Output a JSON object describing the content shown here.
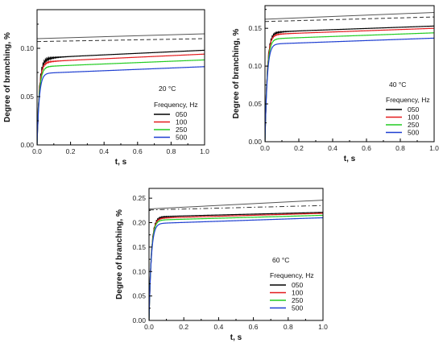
{
  "chart_data": [
    {
      "type": "line",
      "annotation": "20 °C",
      "xlabel": "t, s",
      "ylabel": "Degree of branching, %",
      "xlim": [
        0.0,
        1.0
      ],
      "ylim": [
        0.0,
        0.14
      ],
      "xticks": [
        "0.0",
        "0.2",
        "0.4",
        "0.6",
        "0.8",
        "1.0"
      ],
      "yticks": [
        "0.00",
        "0.05",
        "0.10"
      ],
      "yticks_values": [
        0.0,
        0.05,
        0.1
      ],
      "legend_title": "Frequency, Hz",
      "legend_position": "bottom-right",
      "grid": false,
      "reference_lines": [
        {
          "style": "solid",
          "color": "#555555",
          "x": [
            0,
            1
          ],
          "y": [
            0.11,
            0.115
          ]
        },
        {
          "style": "dashed",
          "color": "#333333",
          "x": [
            0,
            1
          ],
          "y": [
            0.107,
            0.11
          ]
        }
      ],
      "series": [
        {
          "name": "050",
          "color": "#000000",
          "plateau_start": 0.09,
          "plateau_end": 0.098,
          "oscillation": 0.01
        },
        {
          "name": "100",
          "color": "#e31a1c",
          "plateau_start": 0.086,
          "plateau_end": 0.094,
          "oscillation": 0.005
        },
        {
          "name": "250",
          "color": "#22cc22",
          "plateau_start": 0.081,
          "plateau_end": 0.088,
          "oscillation": 0.002
        },
        {
          "name": "500",
          "color": "#1f3fd1",
          "plateau_start": 0.074,
          "plateau_end": 0.081,
          "oscillation": 0.0
        }
      ]
    },
    {
      "type": "line",
      "annotation": "40 °C",
      "xlabel": "t, s",
      "ylabel": "Degree of branching, %",
      "xlim": [
        0.0,
        1.0
      ],
      "ylim": [
        0.0,
        0.18
      ],
      "xticks": [
        "0.0",
        "0.2",
        "0.4",
        "0.6",
        "0.8",
        "1.0"
      ],
      "yticks": [
        "0.00",
        "0.05",
        "0.10",
        "0.15"
      ],
      "yticks_values": [
        0.0,
        0.05,
        0.1,
        0.15
      ],
      "legend_title": "Frequency, Hz",
      "legend_position": "bottom-right",
      "grid": false,
      "reference_lines": [
        {
          "style": "solid",
          "color": "#555555",
          "x": [
            0,
            1
          ],
          "y": [
            0.162,
            0.171
          ]
        },
        {
          "style": "dashed",
          "color": "#333333",
          "x": [
            0,
            1
          ],
          "y": [
            0.159,
            0.165
          ]
        }
      ],
      "series": [
        {
          "name": "050",
          "color": "#000000",
          "plateau_start": 0.145,
          "plateau_end": 0.153,
          "oscillation": 0.009
        },
        {
          "name": "100",
          "color": "#e31a1c",
          "plateau_start": 0.142,
          "plateau_end": 0.15,
          "oscillation": 0.005
        },
        {
          "name": "250",
          "color": "#22cc22",
          "plateau_start": 0.136,
          "plateau_end": 0.144,
          "oscillation": 0.002
        },
        {
          "name": "500",
          "color": "#1f3fd1",
          "plateau_start": 0.129,
          "plateau_end": 0.137,
          "oscillation": 0.0
        }
      ]
    },
    {
      "type": "line",
      "annotation": "60 °C",
      "xlabel": "t, s",
      "ylabel": "Degree of branching, %",
      "xlim": [
        0.0,
        1.0
      ],
      "ylim": [
        0.0,
        0.27
      ],
      "xticks": [
        "0.0",
        "0.2",
        "0.4",
        "0.6",
        "0.8",
        "1.0"
      ],
      "yticks": [
        "0.00",
        "0.05",
        "0.10",
        "0.15",
        "0.20",
        "0.25"
      ],
      "yticks_values": [
        0.0,
        0.05,
        0.1,
        0.15,
        0.2,
        0.25
      ],
      "legend_title": "Frequency, Hz",
      "legend_position": "bottom-right",
      "grid": false,
      "reference_lines": [
        {
          "style": "solid",
          "color": "#555555",
          "x": [
            0,
            1
          ],
          "y": [
            0.228,
            0.246
          ]
        },
        {
          "style": "dashdot",
          "color": "#333333",
          "x": [
            0,
            1
          ],
          "y": [
            0.226,
            0.235
          ]
        }
      ],
      "series": [
        {
          "name": "050",
          "color": "#000000",
          "plateau_start": 0.212,
          "plateau_end": 0.221,
          "oscillation": 0.012
        },
        {
          "name": "100",
          "color": "#e31a1c",
          "plateau_start": 0.209,
          "plateau_end": 0.219,
          "oscillation": 0.006
        },
        {
          "name": "250",
          "color": "#22cc22",
          "plateau_start": 0.205,
          "plateau_end": 0.215,
          "oscillation": 0.002
        },
        {
          "name": "500",
          "color": "#1f3fd1",
          "plateau_start": 0.198,
          "plateau_end": 0.21,
          "oscillation": 0.0
        }
      ]
    }
  ]
}
